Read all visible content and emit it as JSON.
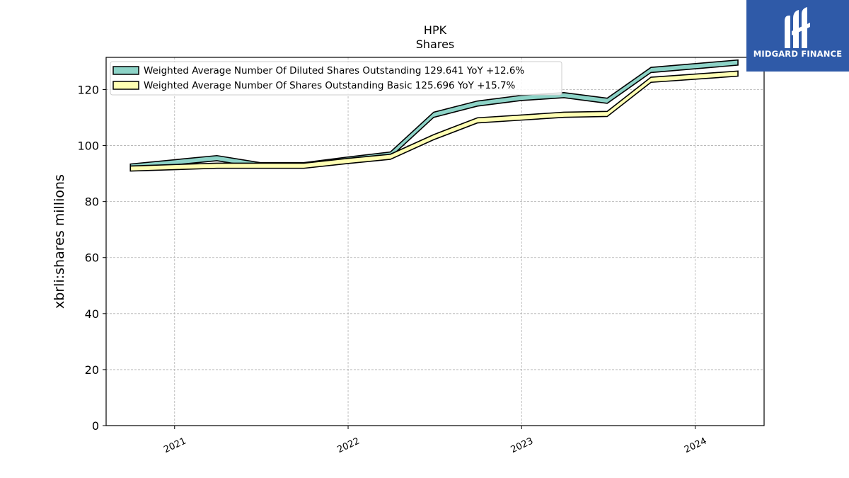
{
  "chart_data": {
    "type": "area",
    "title": "HPK",
    "subtitle": "Shares",
    "ylabel": "xbrli:shares millions",
    "xlabel": "",
    "ylim": [
      0,
      132
    ],
    "yticks": [
      0,
      20,
      40,
      60,
      80,
      100,
      120
    ],
    "xlim": [
      "2020-08-10",
      "2024-05-25"
    ],
    "xticks": [
      {
        "date": "2021-01-01",
        "label": "2021"
      },
      {
        "date": "2022-01-01",
        "label": "2022"
      },
      {
        "date": "2023-01-01",
        "label": "2023"
      },
      {
        "date": "2024-01-01",
        "label": "2024"
      }
    ],
    "grid": true,
    "legend_position": "top-left",
    "series": [
      {
        "name": "Weighted Average Number Of Diluted Shares Outstanding",
        "legend_label": "Weighted Average Number Of Diluted Shares Outstanding  129.641 YoY +12.6%",
        "fill_color": "#8dd3c7",
        "x": [
          "2020-09-30",
          "2021-03-31",
          "2021-06-30",
          "2021-09-30",
          "2021-12-31",
          "2022-03-31",
          "2022-06-30",
          "2022-09-30",
          "2022-12-31",
          "2023-03-31",
          "2023-06-30",
          "2023-09-30",
          "2024-03-31"
        ],
        "values": [
          92.5,
          95.5,
          93.0,
          93.0,
          95.0,
          96.8,
          111.0,
          115.0,
          117.0,
          118.0,
          116.0,
          127.0,
          129.641
        ]
      },
      {
        "name": "Weighted Average Number Of Shares Outstanding Basic",
        "legend_label": "Weighted Average Number Of Shares Outstanding Basic  125.696 YoY +15.7%",
        "fill_color": "#ffffb3",
        "x": [
          "2020-09-30",
          "2021-03-31",
          "2021-06-30",
          "2021-09-30",
          "2021-12-31",
          "2022-03-31",
          "2022-06-30",
          "2022-09-30",
          "2022-12-31",
          "2023-03-31",
          "2023-06-30",
          "2023-09-30",
          "2024-03-31"
        ],
        "values": [
          91.8,
          92.8,
          92.8,
          92.8,
          94.5,
          96.0,
          103.0,
          109.0,
          110.0,
          111.0,
          111.3,
          123.5,
          125.696
        ]
      }
    ]
  },
  "logo": {
    "text": "MIDGARD FINANCE",
    "background": "#2f5aa8"
  }
}
